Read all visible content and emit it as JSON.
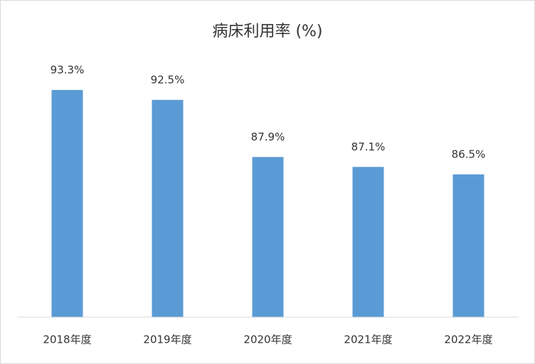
{
  "chart_data": {
    "type": "bar",
    "title": "病床利用率 (%)",
    "categories": [
      "2018年度",
      "2019年度",
      "2020年度",
      "2021年度",
      "2022年度"
    ],
    "values": [
      93.3,
      92.5,
      87.9,
      87.1,
      86.5
    ],
    "value_labels": [
      "93.3%",
      "92.5%",
      "87.9%",
      "87.1%",
      "86.5%"
    ],
    "color": "#5b9bd5",
    "ylim": [
      75,
      100
    ]
  }
}
